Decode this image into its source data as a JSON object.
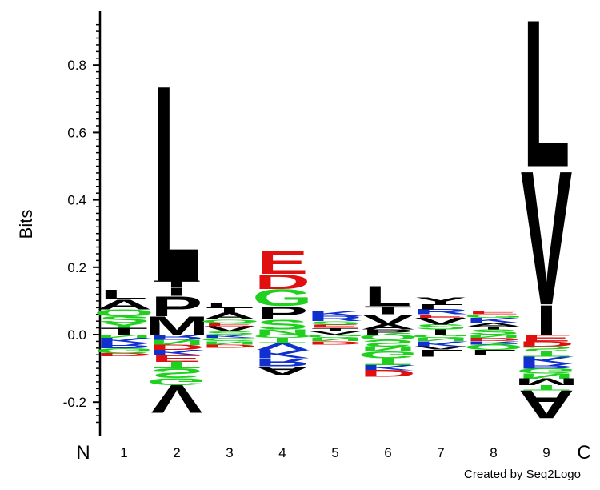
{
  "chart_data": {
    "type": "sequence-logo",
    "ylabel": "Bits",
    "ylim": [
      -0.27,
      0.95
    ],
    "yticks": [
      -0.2,
      0.0,
      0.2,
      0.4,
      0.6,
      0.8
    ],
    "ytick_labels": [
      "-0.2",
      "0.0",
      "0.2",
      "0.4",
      "0.6",
      "0.8"
    ],
    "x_start_label": "N",
    "x_end_label": "C",
    "positions": [
      "1",
      "2",
      "3",
      "4",
      "5",
      "6",
      "7",
      "8",
      "9"
    ],
    "credit": "Created by Seq2Logo",
    "colors": {
      "hydrophobic": "#000000",
      "polar": "#1fd01f",
      "positive": "#1030d0",
      "negative": "#e01010"
    },
    "stacks": [
      {
        "position": "1",
        "up": [
          [
            "T",
            0.02,
            "#000000"
          ],
          [
            "Y",
            0.015,
            "#1fd01f"
          ],
          [
            "S",
            0.02,
            "#1fd01f"
          ],
          [
            "Q",
            0.02,
            "#1fd01f"
          ],
          [
            "A",
            0.03,
            "#000000"
          ],
          [
            "L",
            0.03,
            "#000000"
          ]
        ],
        "down": [
          [
            "N",
            0.01,
            "#1fd01f"
          ],
          [
            "K",
            0.015,
            "#1030d0"
          ],
          [
            "R",
            0.015,
            "#1030d0"
          ],
          [
            "G",
            0.015,
            "#1fd01f"
          ],
          [
            "D",
            0.01,
            "#e01010"
          ]
        ]
      },
      {
        "position": "2",
        "up": [
          [
            "M",
            0.055,
            "#000000"
          ],
          [
            "P",
            0.06,
            "#000000"
          ],
          [
            "I",
            0.025,
            "#000000"
          ],
          [
            "T",
            0.02,
            "#000000"
          ],
          [
            "L",
            0.6,
            "#000000"
          ]
        ],
        "down": [
          [
            "R",
            0.015,
            "#1030d0"
          ],
          [
            "N",
            0.015,
            "#1fd01f"
          ],
          [
            "D",
            0.015,
            "#e01010"
          ],
          [
            "K",
            0.015,
            "#1030d0"
          ],
          [
            "E",
            0.02,
            "#e01010"
          ],
          [
            "T",
            0.02,
            "#1fd01f"
          ],
          [
            "S",
            0.03,
            "#1fd01f"
          ],
          [
            "G",
            0.02,
            "#1fd01f"
          ],
          [
            "V",
            0.085,
            "#000000"
          ]
        ]
      },
      {
        "position": "3",
        "up": [
          [
            "S",
            0.01,
            "#1fd01f"
          ],
          [
            "V",
            0.015,
            "#000000"
          ],
          [
            "E",
            0.01,
            "#e01010"
          ],
          [
            "Q",
            0.01,
            "#1fd01f"
          ],
          [
            "A",
            0.02,
            "#000000"
          ],
          [
            "T",
            0.015,
            "#000000"
          ],
          [
            "L",
            0.015,
            "#000000"
          ]
        ],
        "down": [
          [
            "K",
            0.01,
            "#1030d0"
          ],
          [
            "G",
            0.01,
            "#1fd01f"
          ],
          [
            "N",
            0.01,
            "#1fd01f"
          ],
          [
            "D",
            0.01,
            "#e01010"
          ]
        ]
      },
      {
        "position": "4",
        "up": [
          [
            "N",
            0.015,
            "#1fd01f"
          ],
          [
            "S",
            0.03,
            "#1fd01f"
          ],
          [
            "P",
            0.04,
            "#000000"
          ],
          [
            "G",
            0.05,
            "#1fd01f"
          ],
          [
            "D",
            0.045,
            "#e01010"
          ],
          [
            "E",
            0.07,
            "#e01010"
          ]
        ],
        "down": [
          [
            "Q",
            0.01,
            "#1fd01f"
          ],
          [
            "T",
            0.015,
            "#1fd01f"
          ],
          [
            "V",
            0.02,
            "#1030d0"
          ],
          [
            "K",
            0.025,
            "#1030d0"
          ],
          [
            "R",
            0.025,
            "#1030d0"
          ],
          [
            "A",
            0.025,
            "#000000"
          ]
        ]
      },
      {
        "position": "5",
        "up": [
          [
            "V",
            0.01,
            "#000000"
          ],
          [
            "T",
            0.01,
            "#000000"
          ],
          [
            "E",
            0.01,
            "#e01010"
          ],
          [
            "S",
            0.01,
            "#1fd01f"
          ],
          [
            "R",
            0.015,
            "#1030d0"
          ],
          [
            "K",
            0.015,
            "#1030d0"
          ]
        ],
        "down": [
          [
            "G",
            0.01,
            "#1fd01f"
          ],
          [
            "N",
            0.01,
            "#1fd01f"
          ],
          [
            "D",
            0.01,
            "#e01010"
          ]
        ]
      },
      {
        "position": "6",
        "up": [
          [
            "P",
            0.015,
            "#000000"
          ],
          [
            "A",
            0.015,
            "#000000"
          ],
          [
            "V",
            0.03,
            "#000000"
          ],
          [
            "T",
            0.025,
            "#000000"
          ],
          [
            "L",
            0.06,
            "#000000"
          ]
        ],
        "down": [
          [
            "Q",
            0.015,
            "#1fd01f"
          ],
          [
            "S",
            0.02,
            "#1fd01f"
          ],
          [
            "N",
            0.015,
            "#1fd01f"
          ],
          [
            "G",
            0.02,
            "#1fd01f"
          ],
          [
            "T",
            0.02,
            "#1fd01f"
          ],
          [
            "K",
            0.015,
            "#1030d0"
          ],
          [
            "D",
            0.02,
            "#e01010"
          ]
        ]
      },
      {
        "position": "7",
        "up": [
          [
            "I",
            0.015,
            "#000000"
          ],
          [
            "S",
            0.015,
            "#1fd01f"
          ],
          [
            "V",
            0.02,
            "#000000"
          ],
          [
            "E",
            0.01,
            "#e01010"
          ],
          [
            "R",
            0.015,
            "#1030d0"
          ],
          [
            "F",
            0.015,
            "#000000"
          ],
          [
            "Y",
            0.02,
            "#000000"
          ]
        ],
        "down": [
          [
            "G",
            0.01,
            "#1fd01f"
          ],
          [
            "N",
            0.01,
            "#1fd01f"
          ],
          [
            "K",
            0.015,
            "#1030d0"
          ],
          [
            "A",
            0.01,
            "#000000"
          ],
          [
            "L",
            0.02,
            "#000000"
          ]
        ]
      },
      {
        "position": "8",
        "up": [
          [
            "S",
            0.015,
            "#1fd01f"
          ],
          [
            "T",
            0.01,
            "#000000"
          ],
          [
            "A",
            0.01,
            "#000000"
          ],
          [
            "K",
            0.015,
            "#1030d0"
          ],
          [
            "G",
            0.01,
            "#1fd01f"
          ],
          [
            "E",
            0.01,
            "#e01010"
          ]
        ],
        "down": [
          [
            "N",
            0.01,
            "#1fd01f"
          ],
          [
            "D",
            0.01,
            "#e01010"
          ],
          [
            "R",
            0.01,
            "#1030d0"
          ],
          [
            "Q",
            0.015,
            "#1fd01f"
          ],
          [
            "L",
            0.015,
            "#000000"
          ]
        ]
      },
      {
        "position": "9",
        "up": [
          [
            "I",
            0.09,
            "#000000"
          ],
          [
            "V",
            0.41,
            "#000000"
          ],
          [
            "L",
            0.45,
            "#000000"
          ]
        ],
        "down": [
          [
            "E",
            0.02,
            "#e01010"
          ],
          [
            "D",
            0.015,
            "#e01010"
          ],
          [
            "S",
            0.015,
            "#1fd01f"
          ],
          [
            "T",
            0.015,
            "#1fd01f"
          ],
          [
            "K",
            0.02,
            "#1030d0"
          ],
          [
            "R",
            0.015,
            "#1030d0"
          ],
          [
            "G",
            0.015,
            "#1fd01f"
          ],
          [
            "N",
            0.015,
            "#1fd01f"
          ],
          [
            "M",
            0.02,
            "#000000"
          ],
          [
            "T",
            0.015,
            "#1fd01f"
          ],
          [
            "A",
            0.085,
            "#000000"
          ]
        ]
      }
    ]
  }
}
